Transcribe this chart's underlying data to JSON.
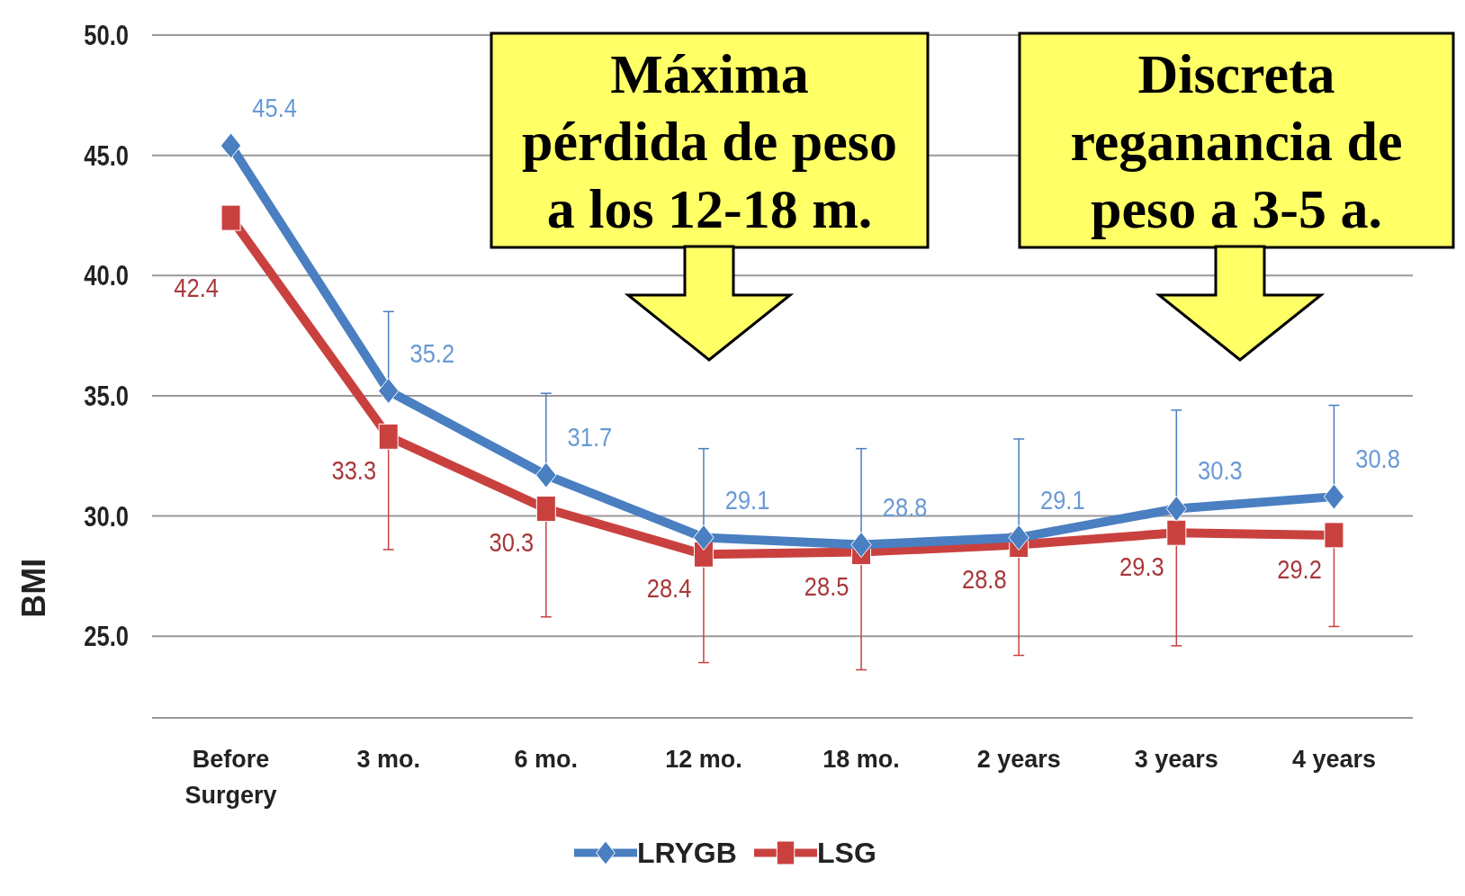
{
  "chart_data": {
    "type": "line",
    "ylabel": "BMI",
    "categories": [
      "Before Surgery",
      "3 mo.",
      "6 mo.",
      "12 mo.",
      "18 mo.",
      "2 years",
      "3 years",
      "4 years"
    ],
    "series": [
      {
        "name": "LRYGB",
        "color": "#4a7fc1",
        "marker": "diamond",
        "values": [
          45.4,
          35.2,
          31.7,
          29.1,
          28.8,
          29.1,
          30.3,
          30.8
        ],
        "errors": [
          null,
          [
            35.2,
            38.5
          ],
          [
            31.7,
            35.1
          ],
          [
            29.1,
            32.8
          ],
          [
            28.8,
            32.8
          ],
          [
            29.1,
            33.2
          ],
          [
            30.3,
            34.4
          ],
          [
            30.8,
            34.6
          ]
        ]
      },
      {
        "name": "LSG",
        "color": "#c9413f",
        "marker": "square",
        "values": [
          42.4,
          33.3,
          30.3,
          28.4,
          28.5,
          28.8,
          29.3,
          29.2
        ],
        "errors": [
          null,
          [
            28.6,
            33.3
          ],
          [
            25.8,
            30.3
          ],
          [
            23.9,
            28.4
          ],
          [
            23.6,
            28.5
          ],
          [
            24.2,
            28.8
          ],
          [
            24.6,
            29.3
          ],
          [
            25.4,
            29.2
          ]
        ]
      }
    ],
    "ylim": [
      21.6,
      50
    ],
    "yticks": [
      {
        "value": 25,
        "label": "25.0"
      },
      {
        "value": 30,
        "label": "30.0"
      },
      {
        "value": 35,
        "label": "35.0"
      },
      {
        "value": 40,
        "label": "40.0"
      },
      {
        "value": 45,
        "label": "45.0"
      },
      {
        "value": 50,
        "label": "50.0"
      }
    ],
    "grid": "y",
    "data_labels": true,
    "legend": "bottom",
    "line_style": "solid",
    "annotations": [
      "Máxima\npérdida de peso\na los 12-18 m.",
      "Discreta\nreganancia de\npeso a 3-5 a."
    ]
  }
}
